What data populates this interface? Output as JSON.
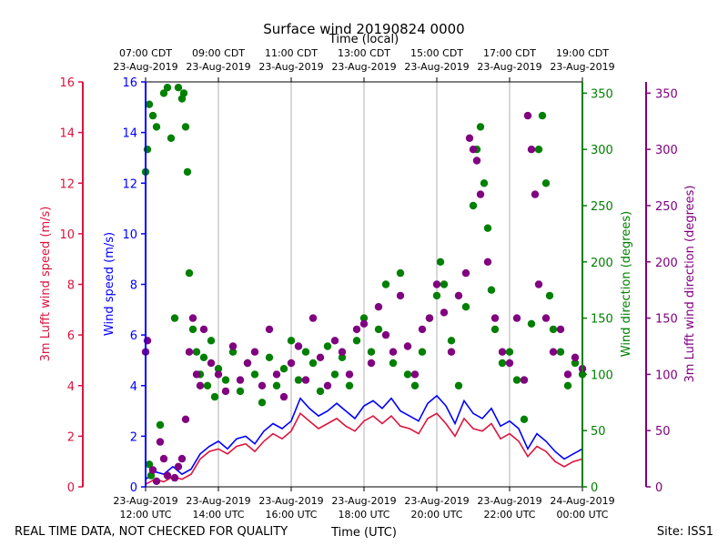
{
  "chart_data": {
    "type": "scatter",
    "title": "Surface wind 20190824 0000",
    "top_axis_title": "Time (local)",
    "xlabel": "Time (UTC)",
    "ylabel_left_outer": "3m Lufft wind speed (m/s)",
    "ylabel_left_inner": "Wind speed (m/s)",
    "ylabel_right_inner": "Wind direction (degrees)",
    "ylabel_right_outer": "3m Lufft wind direction (degrees)",
    "footer_left": "REAL TIME DATA, NOT CHECKED FOR QUALITY",
    "footer_right": "Site: ISS1",
    "x_range_hours_utc": [
      12,
      24
    ],
    "speed_ylim": [
      0,
      16
    ],
    "direction_ylim": [
      0,
      360
    ],
    "speed_ticks": [
      "0",
      "2",
      "4",
      "6",
      "8",
      "10",
      "12",
      "14",
      "16"
    ],
    "direction_ticks": [
      "0",
      "50",
      "100",
      "150",
      "200",
      "250",
      "300",
      "350"
    ],
    "bottom_ticks": [
      {
        "hour": 12,
        "date": "23-Aug-2019",
        "time": "12:00 UTC"
      },
      {
        "hour": 14,
        "date": "23-Aug-2019",
        "time": "14:00 UTC"
      },
      {
        "hour": 16,
        "date": "23-Aug-2019",
        "time": "16:00 UTC"
      },
      {
        "hour": 18,
        "date": "23-Aug-2019",
        "time": "18:00 UTC"
      },
      {
        "hour": 20,
        "date": "23-Aug-2019",
        "time": "20:00 UTC"
      },
      {
        "hour": 22,
        "date": "23-Aug-2019",
        "time": "22:00 UTC"
      },
      {
        "hour": 24,
        "date": "24-Aug-2019",
        "time": "00:00 UTC"
      }
    ],
    "top_ticks": [
      {
        "hour": 12,
        "time": "07:00 CDT",
        "date": "23-Aug-2019"
      },
      {
        "hour": 14,
        "time": "09:00 CDT",
        "date": "23-Aug-2019"
      },
      {
        "hour": 16,
        "time": "11:00 CDT",
        "date": "23-Aug-2019"
      },
      {
        "hour": 18,
        "time": "13:00 CDT",
        "date": "23-Aug-2019"
      },
      {
        "hour": 20,
        "time": "15:00 CDT",
        "date": "23-Aug-2019"
      },
      {
        "hour": 22,
        "time": "17:00 CDT",
        "date": "23-Aug-2019"
      },
      {
        "hour": 24,
        "time": "19:00 CDT",
        "date": "23-Aug-2019"
      }
    ],
    "colors": {
      "lufft_speed": "#dc143c",
      "speed": "#0000ff",
      "direction": "#008000",
      "lufft_direction": "#800080",
      "grid": "#b0b0b0"
    },
    "series": [
      {
        "name": "Wind speed (m/s)",
        "kind": "line",
        "axis": "speed",
        "color": "#0000ff",
        "points": [
          [
            12.0,
            0.3
          ],
          [
            12.25,
            0.6
          ],
          [
            12.5,
            0.5
          ],
          [
            12.75,
            0.8
          ],
          [
            13.0,
            0.5
          ],
          [
            13.25,
            0.7
          ],
          [
            13.5,
            1.3
          ],
          [
            13.75,
            1.6
          ],
          [
            14.0,
            1.8
          ],
          [
            14.25,
            1.5
          ],
          [
            14.5,
            1.9
          ],
          [
            14.75,
            2.0
          ],
          [
            15.0,
            1.7
          ],
          [
            15.25,
            2.2
          ],
          [
            15.5,
            2.5
          ],
          [
            15.75,
            2.3
          ],
          [
            16.0,
            2.6
          ],
          [
            16.25,
            3.5
          ],
          [
            16.5,
            3.1
          ],
          [
            16.75,
            2.8
          ],
          [
            17.0,
            3.0
          ],
          [
            17.25,
            3.3
          ],
          [
            17.5,
            3.0
          ],
          [
            17.75,
            2.7
          ],
          [
            18.0,
            3.2
          ],
          [
            18.25,
            3.4
          ],
          [
            18.5,
            3.1
          ],
          [
            18.75,
            3.5
          ],
          [
            19.0,
            3.0
          ],
          [
            19.25,
            2.8
          ],
          [
            19.5,
            2.6
          ],
          [
            19.75,
            3.3
          ],
          [
            20.0,
            3.6
          ],
          [
            20.25,
            3.2
          ],
          [
            20.5,
            2.5
          ],
          [
            20.75,
            3.4
          ],
          [
            21.0,
            2.9
          ],
          [
            21.25,
            2.7
          ],
          [
            21.5,
            3.1
          ],
          [
            21.75,
            2.4
          ],
          [
            22.0,
            2.6
          ],
          [
            22.25,
            2.3
          ],
          [
            22.5,
            1.5
          ],
          [
            22.75,
            2.1
          ],
          [
            23.0,
            1.8
          ],
          [
            23.25,
            1.4
          ],
          [
            23.5,
            1.1
          ],
          [
            23.75,
            1.3
          ],
          [
            24.0,
            1.5
          ]
        ]
      },
      {
        "name": "3m Lufft wind speed (m/s)",
        "kind": "line",
        "axis": "speed",
        "color": "#dc143c",
        "points": [
          [
            12.0,
            0.1
          ],
          [
            12.25,
            0.3
          ],
          [
            12.5,
            0.2
          ],
          [
            12.75,
            0.4
          ],
          [
            13.0,
            0.3
          ],
          [
            13.25,
            0.5
          ],
          [
            13.5,
            1.1
          ],
          [
            13.75,
            1.4
          ],
          [
            14.0,
            1.5
          ],
          [
            14.25,
            1.3
          ],
          [
            14.5,
            1.6
          ],
          [
            14.75,
            1.7
          ],
          [
            15.0,
            1.4
          ],
          [
            15.25,
            1.8
          ],
          [
            15.5,
            2.1
          ],
          [
            15.75,
            1.9
          ],
          [
            16.0,
            2.2
          ],
          [
            16.25,
            2.9
          ],
          [
            16.5,
            2.6
          ],
          [
            16.75,
            2.3
          ],
          [
            17.0,
            2.5
          ],
          [
            17.25,
            2.7
          ],
          [
            17.5,
            2.4
          ],
          [
            17.75,
            2.2
          ],
          [
            18.0,
            2.6
          ],
          [
            18.25,
            2.8
          ],
          [
            18.5,
            2.5
          ],
          [
            18.75,
            2.8
          ],
          [
            19.0,
            2.4
          ],
          [
            19.25,
            2.3
          ],
          [
            19.5,
            2.1
          ],
          [
            19.75,
            2.7
          ],
          [
            20.0,
            2.9
          ],
          [
            20.25,
            2.5
          ],
          [
            20.5,
            2.0
          ],
          [
            20.75,
            2.7
          ],
          [
            21.0,
            2.3
          ],
          [
            21.25,
            2.2
          ],
          [
            21.5,
            2.5
          ],
          [
            21.75,
            1.9
          ],
          [
            22.0,
            2.1
          ],
          [
            22.25,
            1.8
          ],
          [
            22.5,
            1.2
          ],
          [
            22.75,
            1.6
          ],
          [
            23.0,
            1.4
          ],
          [
            23.25,
            1.0
          ],
          [
            23.5,
            0.8
          ],
          [
            23.75,
            1.0
          ],
          [
            24.0,
            1.1
          ]
        ]
      },
      {
        "name": "Wind direction (degrees)",
        "kind": "scatter",
        "axis": "direction",
        "color": "#008000",
        "points": [
          [
            12.0,
            280
          ],
          [
            12.05,
            300
          ],
          [
            12.1,
            340
          ],
          [
            12.1,
            20
          ],
          [
            12.15,
            10
          ],
          [
            12.2,
            330
          ],
          [
            12.3,
            320
          ],
          [
            12.4,
            55
          ],
          [
            12.5,
            350
          ],
          [
            12.6,
            355
          ],
          [
            12.7,
            310
          ],
          [
            12.8,
            150
          ],
          [
            12.9,
            355
          ],
          [
            13.0,
            345
          ],
          [
            13.05,
            350
          ],
          [
            13.1,
            320
          ],
          [
            13.15,
            280
          ],
          [
            13.2,
            190
          ],
          [
            13.3,
            140
          ],
          [
            13.4,
            120
          ],
          [
            13.5,
            100
          ],
          [
            13.6,
            115
          ],
          [
            13.7,
            90
          ],
          [
            13.8,
            130
          ],
          [
            13.9,
            80
          ],
          [
            14.0,
            105
          ],
          [
            14.2,
            95
          ],
          [
            14.4,
            120
          ],
          [
            14.6,
            85
          ],
          [
            14.8,
            110
          ],
          [
            15.0,
            100
          ],
          [
            15.2,
            75
          ],
          [
            15.4,
            115
          ],
          [
            15.6,
            90
          ],
          [
            15.8,
            105
          ],
          [
            16.0,
            130
          ],
          [
            16.2,
            95
          ],
          [
            16.4,
            120
          ],
          [
            16.6,
            110
          ],
          [
            16.8,
            85
          ],
          [
            17.0,
            125
          ],
          [
            17.2,
            100
          ],
          [
            17.4,
            115
          ],
          [
            17.6,
            90
          ],
          [
            17.8,
            130
          ],
          [
            18.0,
            150
          ],
          [
            18.2,
            120
          ],
          [
            18.4,
            140
          ],
          [
            18.6,
            180
          ],
          [
            18.8,
            110
          ],
          [
            19.0,
            190
          ],
          [
            19.2,
            100
          ],
          [
            19.4,
            90
          ],
          [
            19.6,
            120
          ],
          [
            19.8,
            150
          ],
          [
            20.0,
            170
          ],
          [
            20.1,
            200
          ],
          [
            20.2,
            180
          ],
          [
            20.4,
            130
          ],
          [
            20.6,
            90
          ],
          [
            20.8,
            160
          ],
          [
            21.0,
            250
          ],
          [
            21.1,
            300
          ],
          [
            21.2,
            320
          ],
          [
            21.3,
            270
          ],
          [
            21.4,
            230
          ],
          [
            21.5,
            175
          ],
          [
            21.6,
            140
          ],
          [
            21.8,
            110
          ],
          [
            22.0,
            120
          ],
          [
            22.2,
            95
          ],
          [
            22.4,
            60
          ],
          [
            22.6,
            145
          ],
          [
            22.8,
            300
          ],
          [
            22.9,
            330
          ],
          [
            23.0,
            270
          ],
          [
            23.1,
            170
          ],
          [
            23.2,
            140
          ],
          [
            23.4,
            120
          ],
          [
            23.6,
            90
          ],
          [
            23.8,
            110
          ],
          [
            24.0,
            100
          ]
        ]
      },
      {
        "name": "3m Lufft wind direction (degrees)",
        "kind": "scatter",
        "axis": "direction",
        "color": "#800080",
        "points": [
          [
            12.0,
            120
          ],
          [
            12.05,
            130
          ],
          [
            12.2,
            15
          ],
          [
            12.3,
            5
          ],
          [
            12.4,
            40
          ],
          [
            12.5,
            25
          ],
          [
            12.6,
            10
          ],
          [
            12.8,
            8
          ],
          [
            12.9,
            18
          ],
          [
            13.0,
            25
          ],
          [
            13.1,
            60
          ],
          [
            13.2,
            120
          ],
          [
            13.3,
            150
          ],
          [
            13.4,
            100
          ],
          [
            13.5,
            90
          ],
          [
            13.6,
            140
          ],
          [
            13.8,
            110
          ],
          [
            14.0,
            100
          ],
          [
            14.2,
            85
          ],
          [
            14.4,
            125
          ],
          [
            14.6,
            95
          ],
          [
            14.8,
            110
          ],
          [
            15.0,
            120
          ],
          [
            15.2,
            90
          ],
          [
            15.4,
            140
          ],
          [
            15.6,
            100
          ],
          [
            15.8,
            80
          ],
          [
            16.0,
            110
          ],
          [
            16.2,
            125
          ],
          [
            16.4,
            95
          ],
          [
            16.6,
            150
          ],
          [
            16.8,
            115
          ],
          [
            17.0,
            90
          ],
          [
            17.2,
            130
          ],
          [
            17.4,
            120
          ],
          [
            17.6,
            100
          ],
          [
            17.8,
            140
          ],
          [
            18.0,
            145
          ],
          [
            18.2,
            110
          ],
          [
            18.4,
            160
          ],
          [
            18.6,
            135
          ],
          [
            18.8,
            120
          ],
          [
            19.0,
            170
          ],
          [
            19.2,
            125
          ],
          [
            19.4,
            100
          ],
          [
            19.6,
            140
          ],
          [
            19.8,
            150
          ],
          [
            20.0,
            180
          ],
          [
            20.2,
            155
          ],
          [
            20.4,
            120
          ],
          [
            20.6,
            170
          ],
          [
            20.8,
            190
          ],
          [
            20.9,
            310
          ],
          [
            21.0,
            300
          ],
          [
            21.1,
            290
          ],
          [
            21.2,
            260
          ],
          [
            21.4,
            200
          ],
          [
            21.6,
            150
          ],
          [
            21.8,
            120
          ],
          [
            22.0,
            110
          ],
          [
            22.2,
            150
          ],
          [
            22.4,
            95
          ],
          [
            22.5,
            330
          ],
          [
            22.6,
            300
          ],
          [
            22.7,
            260
          ],
          [
            22.8,
            180
          ],
          [
            23.0,
            150
          ],
          [
            23.2,
            120
          ],
          [
            23.4,
            140
          ],
          [
            23.6,
            100
          ],
          [
            23.8,
            115
          ],
          [
            24.0,
            105
          ]
        ]
      }
    ]
  }
}
